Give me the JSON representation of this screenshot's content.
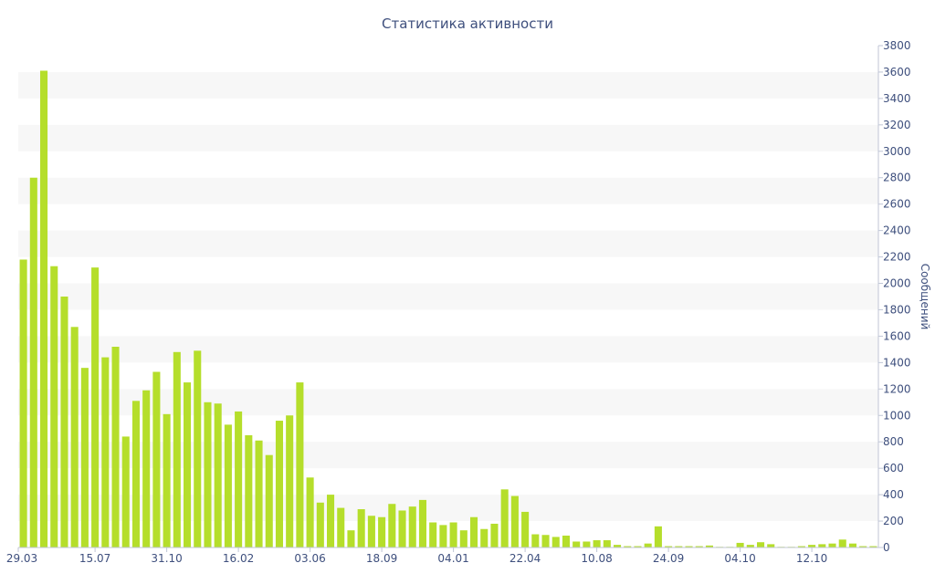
{
  "chart_data": {
    "type": "bar",
    "title": "Статистика активности",
    "ylabel": "Сообщений",
    "xlabel": "",
    "ylim": [
      0,
      3800
    ],
    "ytick_step": 200,
    "y_axis_side": "right",
    "grid": "alternating-bands",
    "bar_color": "#b5de2b",
    "text_color": "#3e4f7d",
    "x_tick_labels": [
      {
        "label": "29.03",
        "index": 0
      },
      {
        "label": "15.07",
        "index": 7
      },
      {
        "label": "31.10",
        "index": 14
      },
      {
        "label": "16.02",
        "index": 21
      },
      {
        "label": "03.06",
        "index": 28
      },
      {
        "label": "18.09",
        "index": 35
      },
      {
        "label": "04.01",
        "index": 42
      },
      {
        "label": "22.04",
        "index": 49
      },
      {
        "label": "10.08",
        "index": 56
      },
      {
        "label": "24.09",
        "index": 63
      },
      {
        "label": "04.10",
        "index": 70
      },
      {
        "label": "12.10",
        "index": 77
      }
    ],
    "values": [
      2180,
      2800,
      3610,
      2130,
      1900,
      1670,
      1360,
      2120,
      1440,
      1520,
      840,
      1110,
      1190,
      1330,
      1010,
      1480,
      1250,
      1490,
      1100,
      1090,
      930,
      1030,
      850,
      810,
      700,
      960,
      1000,
      1250,
      530,
      340,
      400,
      300,
      130,
      290,
      240,
      230,
      330,
      280,
      310,
      360,
      190,
      170,
      190,
      130,
      230,
      140,
      180,
      440,
      390,
      270,
      100,
      95,
      80,
      90,
      45,
      45,
      55,
      55,
      20,
      10,
      10,
      30,
      160,
      10,
      10,
      10,
      10,
      15,
      5,
      5,
      35,
      20,
      40,
      25,
      5,
      5,
      10,
      20,
      25,
      30,
      60,
      30,
      10,
      10
    ]
  }
}
